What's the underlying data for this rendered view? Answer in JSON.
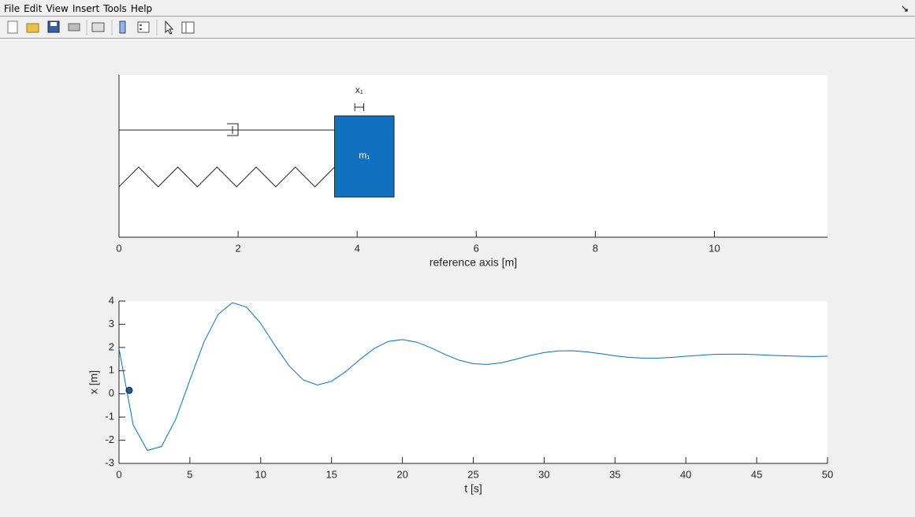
{
  "menu": [
    "File",
    "Edit",
    "View",
    "Insert",
    "Tools",
    "Help"
  ],
  "chart_data": [
    {
      "type": "mass-spring",
      "xlabel": "reference axis [m]",
      "xlim": [
        0,
        11.9
      ],
      "xticks": [
        0,
        2,
        4,
        6,
        8,
        10
      ],
      "mass": {
        "label": "m₁",
        "x": [
          3.62,
          4.62
        ],
        "color": "#1170c0"
      },
      "displacement": {
        "label": "x₁",
        "x": [
          3.96,
          4.11
        ]
      }
    },
    {
      "type": "line",
      "xlabel": "t [s]",
      "ylabel": "x [m]",
      "xlim": [
        0,
        50
      ],
      "ylim": [
        -3,
        4
      ],
      "xticks": [
        0,
        5,
        10,
        15,
        20,
        25,
        30,
        35,
        40,
        45,
        50
      ],
      "yticks": [
        -3,
        -2,
        -1,
        0,
        1,
        2,
        3,
        4
      ],
      "x": [
        0,
        1,
        2,
        3,
        4,
        5,
        6,
        7,
        8,
        9,
        10,
        11,
        12,
        13,
        14,
        15,
        16,
        17,
        18,
        19,
        20,
        21,
        22,
        23,
        24,
        25,
        26,
        27,
        28,
        29,
        30,
        31,
        32,
        33,
        34,
        35,
        36,
        37,
        38,
        39,
        40,
        41,
        42,
        43,
        44,
        45,
        46,
        47,
        48,
        49,
        50
      ],
      "series": [
        {
          "color": "#0072bd",
          "values": [
            1.95,
            -1.34,
            -2.44,
            -2.27,
            -1.1,
            0.59,
            2.24,
            3.43,
            3.93,
            3.74,
            3.04,
            2.09,
            1.21,
            0.6,
            0.38,
            0.54,
            0.96,
            1.48,
            1.95,
            2.26,
            2.34,
            2.23,
            1.99,
            1.7,
            1.45,
            1.3,
            1.27,
            1.34,
            1.49,
            1.65,
            1.78,
            1.85,
            1.86,
            1.81,
            1.73,
            1.64,
            1.57,
            1.54,
            1.54,
            1.57,
            1.62,
            1.66,
            1.7,
            1.71,
            1.71,
            1.69,
            1.66,
            1.64,
            1.62,
            1.61,
            1.62
          ]
        }
      ],
      "marker": {
        "x": 0.72,
        "value": 0.15,
        "color": "#1f5f99"
      }
    }
  ]
}
